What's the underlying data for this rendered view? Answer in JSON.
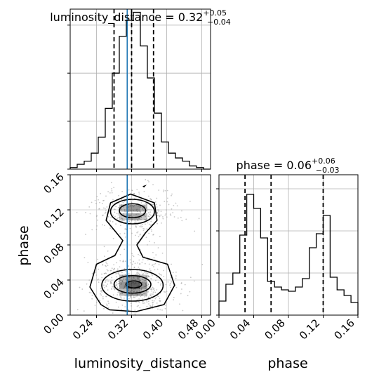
{
  "chart_data": {
    "type": "corner",
    "parameters": [
      "luminosity_distance",
      "phase"
    ],
    "truth": {
      "luminosity_distance": 0.31,
      "phase": null
    },
    "truth_color": "#1f77b4",
    "panels": [
      {
        "id": "hist-luminosity_distance",
        "type": "histogram",
        "title": {
          "label": "luminosity_distance",
          "value": "0.32",
          "upper": "+0.05",
          "lower": "−0.04"
        },
        "xlim": [
          0.18,
          0.5
        ],
        "ylim": [
          0,
          1.0
        ],
        "bin_edges": [
          0.18,
          0.196,
          0.212,
          0.228,
          0.244,
          0.26,
          0.276,
          0.292,
          0.308,
          0.324,
          0.34,
          0.356,
          0.372,
          0.388,
          0.404,
          0.42,
          0.436,
          0.452,
          0.468,
          0.484,
          0.5
        ],
        "counts": [
          0.01,
          0.03,
          0.05,
          0.1,
          0.2,
          0.38,
          0.6,
          0.83,
          0.93,
          0.98,
          0.77,
          0.57,
          0.35,
          0.17,
          0.1,
          0.07,
          0.05,
          0.02,
          0.01,
          0
        ],
        "quantiles": [
          0.28,
          0.32,
          0.37
        ],
        "xticks": [
          "0.24",
          "0.32",
          "0.40",
          "0.48"
        ]
      },
      {
        "id": "hist-phase",
        "type": "histogram",
        "title": {
          "label": "phase",
          "value": "0.06",
          "upper": "+0.06",
          "lower": "−0.03"
        },
        "xlim": [
          0.0,
          0.16
        ],
        "ylim": [
          0,
          1.0
        ],
        "bin_edges": [
          0.0,
          0.008,
          0.016,
          0.024,
          0.032,
          0.04,
          0.048,
          0.056,
          0.064,
          0.072,
          0.08,
          0.088,
          0.096,
          0.104,
          0.112,
          0.12,
          0.128,
          0.136,
          0.144,
          0.152,
          0.16
        ],
        "counts": [
          0.1,
          0.22,
          0.3,
          0.57,
          0.86,
          0.76,
          0.55,
          0.24,
          0.2,
          0.18,
          0.17,
          0.2,
          0.26,
          0.48,
          0.58,
          0.71,
          0.27,
          0.18,
          0.14,
          0.09
        ],
        "quantiles": [
          0.03,
          0.06,
          0.12
        ],
        "xticks": [
          "0.00",
          "0.04",
          "0.08",
          "0.12",
          "0.16"
        ]
      },
      {
        "id": "joint-luminosity_distance-phase",
        "type": "contour",
        "xlim": [
          0.18,
          0.5
        ],
        "ylim": [
          0.0,
          0.16
        ],
        "modes": [
          {
            "x": 0.325,
            "y": 0.034,
            "sx": 0.03,
            "sy": 0.0085,
            "weight": 0.55
          },
          {
            "x": 0.325,
            "y": 0.117,
            "sx": 0.03,
            "sy": 0.0075,
            "weight": 0.35
          }
        ],
        "bridge": {
          "x": 0.31,
          "y": 0.075
        },
        "xticks": [
          "0.24",
          "0.32",
          "0.40",
          "0.48"
        ],
        "yticks": [
          "0.00",
          "0.04",
          "0.08",
          "0.12",
          "0.16"
        ]
      }
    ],
    "xlabels": [
      "luminosity_distance",
      "phase"
    ],
    "ylabel": "phase"
  }
}
